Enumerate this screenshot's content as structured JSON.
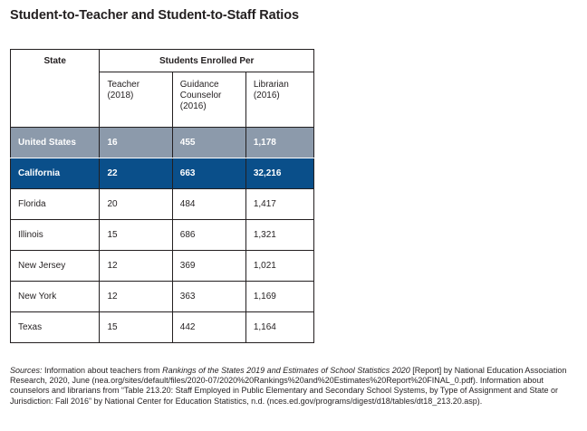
{
  "title": "Student-to-Teacher and Student-to-Staff Ratios",
  "table": {
    "state_header": "State",
    "group_header": "Students Enrolled Per",
    "columns": [
      {
        "line1": "Teacher",
        "line2": "(2018)",
        "line3": ""
      },
      {
        "line1": "Guidance",
        "line2": "Counselor",
        "line3": "(2016)"
      },
      {
        "line1": "Librarian",
        "line2": "(2016)",
        "line3": ""
      }
    ],
    "rows": [
      {
        "state": "United States",
        "teacher": "16",
        "counselor": "455",
        "librarian": "1,178"
      },
      {
        "state": "California",
        "teacher": "22",
        "counselor": "663",
        "librarian": "32,216"
      },
      {
        "state": "Florida",
        "teacher": "20",
        "counselor": "484",
        "librarian": "1,417"
      },
      {
        "state": "Illinois",
        "teacher": "15",
        "counselor": "686",
        "librarian": "1,321"
      },
      {
        "state": "New Jersey",
        "teacher": "12",
        "counselor": "369",
        "librarian": "1,021"
      },
      {
        "state": "New York",
        "teacher": "12",
        "counselor": "363",
        "librarian": "1,169"
      },
      {
        "state": "Texas",
        "teacher": "15",
        "counselor": "442",
        "librarian": "1,164"
      }
    ]
  },
  "sources": {
    "label": "Sources:",
    "part1": " Information about teachers from ",
    "title1": "Rankings of the States 2019 and Estimates of School Statistics 2020",
    "part2": " [Report] by National Education Association Research, 2020, June (nea.org/sites/default/files/2020-07/2020%20Rankings%20and%20Estimates%20Report%20FINAL_0.pdf). Information about counselors and librarians from “Table 213.20: Staff Employed in Public Elementary and Secondary School Systems, by Type of Assignment and State or Jurisdiction: Fall 2016” by National Center for Education Statistics, n.d. (nces.ed.gov/programs/digest/d18/tables/dt18_213.20.asp)."
  },
  "colors": {
    "us_row_bg": "#8c9aab",
    "ca_row_bg": "#0a4f8a",
    "text": "#231f20"
  }
}
